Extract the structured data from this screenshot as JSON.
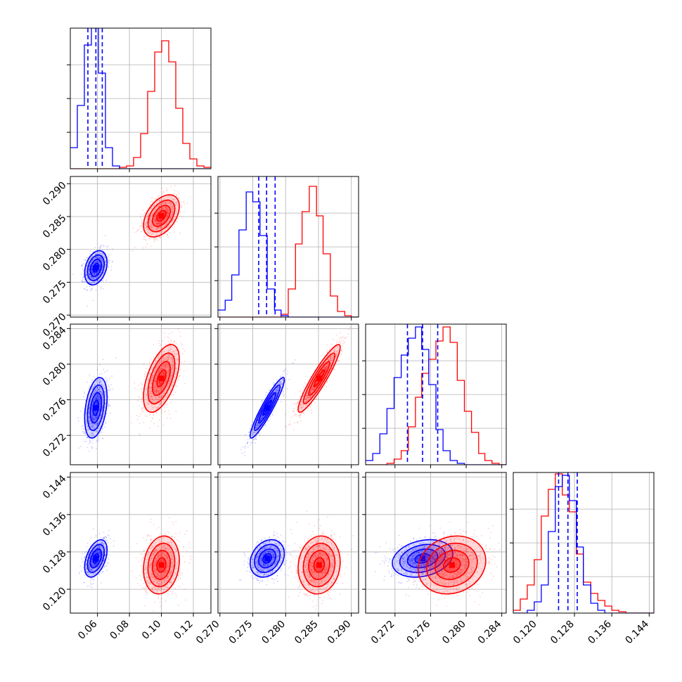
{
  "chart_data": {
    "type": "corner",
    "grid": true,
    "parameters": [
      {
        "ticks": [
          0.06,
          0.08,
          0.1,
          0.12
        ],
        "tick_labels": [
          "0.06",
          "0.08",
          "0.10",
          "0.12"
        ],
        "range": [
          0.043,
          0.131
        ]
      },
      {
        "ticks": [
          0.27,
          0.275,
          0.28,
          0.285,
          0.29
        ],
        "tick_labels": [
          "0.270",
          "0.275",
          "0.280",
          "0.285",
          "0.290"
        ],
        "range": [
          0.2697,
          0.2911
        ]
      },
      {
        "ticks": [
          0.272,
          0.276,
          0.28,
          0.284
        ],
        "tick_labels": [
          "0.272",
          "0.276",
          "0.280",
          "0.284"
        ],
        "range": [
          0.2687,
          0.2845
        ]
      },
      {
        "ticks": [
          0.12,
          0.128,
          0.136,
          0.144
        ],
        "tick_labels": [
          "0.120",
          "0.128",
          "0.136",
          "0.144"
        ],
        "range": [
          0.1149,
          0.145
        ]
      }
    ],
    "series": [
      {
        "color": "#0000ff",
        "mean": [
          0.059,
          0.2772,
          0.2751,
          0.1266
        ],
        "std": [
          0.0035,
          0.0013,
          0.0017,
          0.002
        ],
        "quantiles": [
          [
            0.054,
            0.059,
            0.063
          ],
          [
            0.2759,
            0.2771,
            0.2784
          ],
          [
            0.2734,
            0.2751,
            0.2768
          ],
          [
            0.1246,
            0.1266,
            0.1286
          ]
        ]
      },
      {
        "color": "#ff0000",
        "mean": [
          0.1,
          0.2851,
          0.2784,
          0.1252
        ],
        "std": [
          0.0056,
          0.0016,
          0.0019,
          0.0031
        ],
        "quantiles": []
      }
    ],
    "histograms": [
      {
        "bin_edges": [
          0.043,
          0.0474,
          0.0518,
          0.0562,
          0.0606,
          0.065,
          0.0694,
          0.0738,
          0.0782,
          0.0826,
          0.087,
          0.0914,
          0.0958,
          0.1002,
          0.1046,
          0.109,
          0.1134,
          0.1178,
          0.1222,
          0.1266,
          0.131
        ],
        "blue": [
          0.15,
          0.45,
          0.88,
          1.0,
          0.68,
          0.15,
          0.02,
          0,
          0,
          0,
          0,
          0,
          0,
          0,
          0,
          0,
          0,
          0,
          0,
          0
        ],
        "red": [
          0,
          0,
          0,
          0,
          0,
          0,
          0,
          0.01,
          0.02,
          0.08,
          0.25,
          0.55,
          0.83,
          0.91,
          0.76,
          0.43,
          0.18,
          0.07,
          0.02,
          0.01
        ]
      },
      {
        "bin_edges": [
          0.2697,
          0.2708,
          0.2718,
          0.2729,
          0.274,
          0.275,
          0.2761,
          0.2772,
          0.2783,
          0.2793,
          0.2804,
          0.2815,
          0.2825,
          0.2836,
          0.2847,
          0.2857,
          0.2868,
          0.2879,
          0.289,
          0.29,
          0.2911
        ],
        "blue": [
          0.05,
          0.12,
          0.3,
          0.62,
          0.89,
          0.82,
          0.58,
          0.2,
          0.05,
          0.01,
          0,
          0,
          0,
          0,
          0,
          0,
          0,
          0,
          0,
          0
        ],
        "red": [
          0,
          0,
          0,
          0,
          0,
          0,
          0,
          0,
          0,
          0.02,
          0.2,
          0.52,
          0.75,
          0.93,
          0.72,
          0.45,
          0.15,
          0.04,
          0.01,
          0
        ],
        "red_edges_offset": 0
      },
      {
        "bin_edges": [
          0.2687,
          0.2695,
          0.2703,
          0.2711,
          0.2719,
          0.2727,
          0.2735,
          0.2743,
          0.275,
          0.2758,
          0.2766,
          0.2774,
          0.2782,
          0.279,
          0.2798,
          0.2806,
          0.2814,
          0.2821,
          0.2829,
          0.2837,
          0.2845
        ],
        "blue": [
          0.03,
          0.08,
          0.22,
          0.4,
          0.62,
          0.78,
          0.9,
          0.98,
          0.82,
          0.57,
          0.25,
          0.1,
          0.03,
          0.01,
          0,
          0,
          0,
          0,
          0,
          0
        ],
        "red": [
          0,
          0,
          0,
          0.01,
          0.04,
          0.1,
          0.27,
          0.48,
          0.65,
          0.75,
          0.88,
          0.98,
          0.87,
          0.6,
          0.38,
          0.23,
          0.08,
          0.03,
          0.01,
          0
        ]
      },
      {
        "bin_edges": [
          0.1149,
          0.1164,
          0.1179,
          0.1194,
          0.1209,
          0.1224,
          0.1239,
          0.1254,
          0.1269,
          0.1284,
          0.1299,
          0.1315,
          0.133,
          0.1345,
          0.136,
          0.1375,
          0.139,
          0.1405,
          0.142,
          0.1435,
          0.145
        ],
        "blue": [
          0,
          0,
          0.02,
          0.08,
          0.2,
          0.58,
          0.9,
          0.98,
          0.8,
          0.47,
          0.2,
          0.07,
          0.02,
          0,
          0,
          0,
          0,
          0,
          0,
          0
        ],
        "red": [
          0.02,
          0.1,
          0.2,
          0.38,
          0.69,
          0.88,
          0.99,
          0.84,
          0.72,
          0.42,
          0.22,
          0.14,
          0.09,
          0.05,
          0.02,
          0.01,
          0,
          0,
          0,
          0
        ]
      }
    ],
    "correlations": {
      "1-0": [
        0.3,
        0.45
      ],
      "2-0": [
        0.35,
        0.55
      ],
      "2-1": [
        0.93,
        0.92
      ],
      "3-0": [
        0.45,
        0.15
      ],
      "3-1": [
        0.25,
        0.1
      ],
      "3-2": [
        0.25,
        0.15
      ]
    }
  }
}
